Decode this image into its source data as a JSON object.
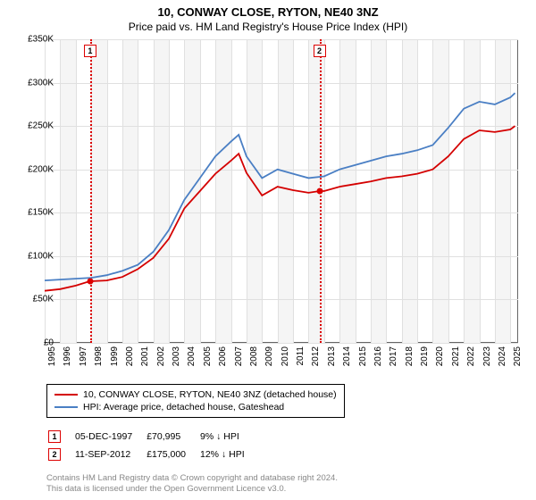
{
  "title": "10, CONWAY CLOSE, RYTON, NE40 3NZ",
  "subtitle": "Price paid vs. HM Land Registry's House Price Index (HPI)",
  "chart": {
    "type": "line",
    "background_color": "#ffffff",
    "grid_color": "#e0e0e0",
    "band_color": "#f5f5f5",
    "axis_color": "#666666",
    "xlim": [
      1995,
      2025.5
    ],
    "ylim": [
      0,
      350000
    ],
    "ytick_step": 50000,
    "ytick_labels": [
      "£0",
      "£50K",
      "£100K",
      "£150K",
      "£200K",
      "£250K",
      "£300K",
      "£350K"
    ],
    "xticks": [
      1995,
      1996,
      1997,
      1998,
      1999,
      2000,
      2001,
      2002,
      2003,
      2004,
      2005,
      2006,
      2007,
      2008,
      2009,
      2010,
      2011,
      2012,
      2013,
      2014,
      2015,
      2016,
      2017,
      2018,
      2019,
      2020,
      2021,
      2022,
      2023,
      2024,
      2025
    ],
    "bands": [
      [
        1996,
        1997
      ],
      [
        1998,
        1999
      ],
      [
        2000,
        2001
      ],
      [
        2002,
        2003
      ],
      [
        2004,
        2005
      ],
      [
        2006,
        2007
      ],
      [
        2008,
        2009
      ],
      [
        2010,
        2011
      ],
      [
        2012,
        2013
      ],
      [
        2014,
        2015
      ],
      [
        2016,
        2017
      ],
      [
        2018,
        2019
      ],
      [
        2020,
        2021
      ],
      [
        2022,
        2023
      ],
      [
        2024,
        2025
      ]
    ],
    "label_fontsize": 10,
    "line_width": 1.8,
    "series": [
      {
        "name": "price_paid",
        "label": "10, CONWAY CLOSE, RYTON, NE40 3NZ (detached house)",
        "color": "#d40000",
        "x": [
          1995,
          1996,
          1997,
          1997.9,
          1998,
          1999,
          2000,
          2001,
          2002,
          2003,
          2004,
          2005,
          2006,
          2007,
          2007.5,
          2008,
          2009,
          2010,
          2011,
          2012,
          2012.7,
          2013,
          2014,
          2015,
          2016,
          2017,
          2018,
          2019,
          2020,
          2021,
          2022,
          2023,
          2024,
          2025,
          2025.3
        ],
        "y": [
          60000,
          62000,
          66000,
          70995,
          70995,
          72000,
          76000,
          85000,
          98000,
          120000,
          155000,
          175000,
          195000,
          210000,
          218000,
          196000,
          170000,
          180000,
          176000,
          173000,
          175000,
          175000,
          180000,
          183000,
          186000,
          190000,
          192000,
          195000,
          200000,
          215000,
          235000,
          245000,
          243000,
          246000,
          250000
        ]
      },
      {
        "name": "hpi",
        "label": "HPI: Average price, detached house, Gateshead",
        "color": "#4a7fc4",
        "x": [
          1995,
          1996,
          1997,
          1998,
          1999,
          2000,
          2001,
          2002,
          2003,
          2004,
          2005,
          2006,
          2007,
          2007.5,
          2008,
          2009,
          2010,
          2011,
          2012,
          2013,
          2014,
          2015,
          2016,
          2017,
          2018,
          2019,
          2020,
          2021,
          2022,
          2023,
          2024,
          2025,
          2025.3
        ],
        "y": [
          72000,
          73000,
          74000,
          75000,
          78000,
          83000,
          90000,
          105000,
          130000,
          165000,
          190000,
          215000,
          232000,
          240000,
          215000,
          190000,
          200000,
          195000,
          190000,
          192000,
          200000,
          205000,
          210000,
          215000,
          218000,
          222000,
          228000,
          248000,
          270000,
          278000,
          275000,
          283000,
          288000
        ]
      }
    ],
    "markers": [
      {
        "id": "1",
        "x": 1997.93,
        "y_price": 70995
      },
      {
        "id": "2",
        "x": 2012.7,
        "y_price": 175000
      }
    ],
    "marker_color": "#d00000"
  },
  "legend": {
    "border_color": "#000000",
    "items": [
      {
        "color": "#d40000",
        "label_path": "chart.series.0.label"
      },
      {
        "color": "#4a7fc4",
        "label_path": "chart.series.1.label"
      }
    ]
  },
  "sales": [
    {
      "id": "1",
      "date": "05-DEC-1997",
      "price": "£70,995",
      "pct": "9%",
      "arrow": "↓",
      "vs": "HPI"
    },
    {
      "id": "2",
      "date": "11-SEP-2012",
      "price": "£175,000",
      "pct": "12%",
      "arrow": "↓",
      "vs": "HPI"
    }
  ],
  "footer_line1": "Contains HM Land Registry data © Crown copyright and database right 2024.",
  "footer_line2": "This data is licensed under the Open Government Licence v3.0."
}
